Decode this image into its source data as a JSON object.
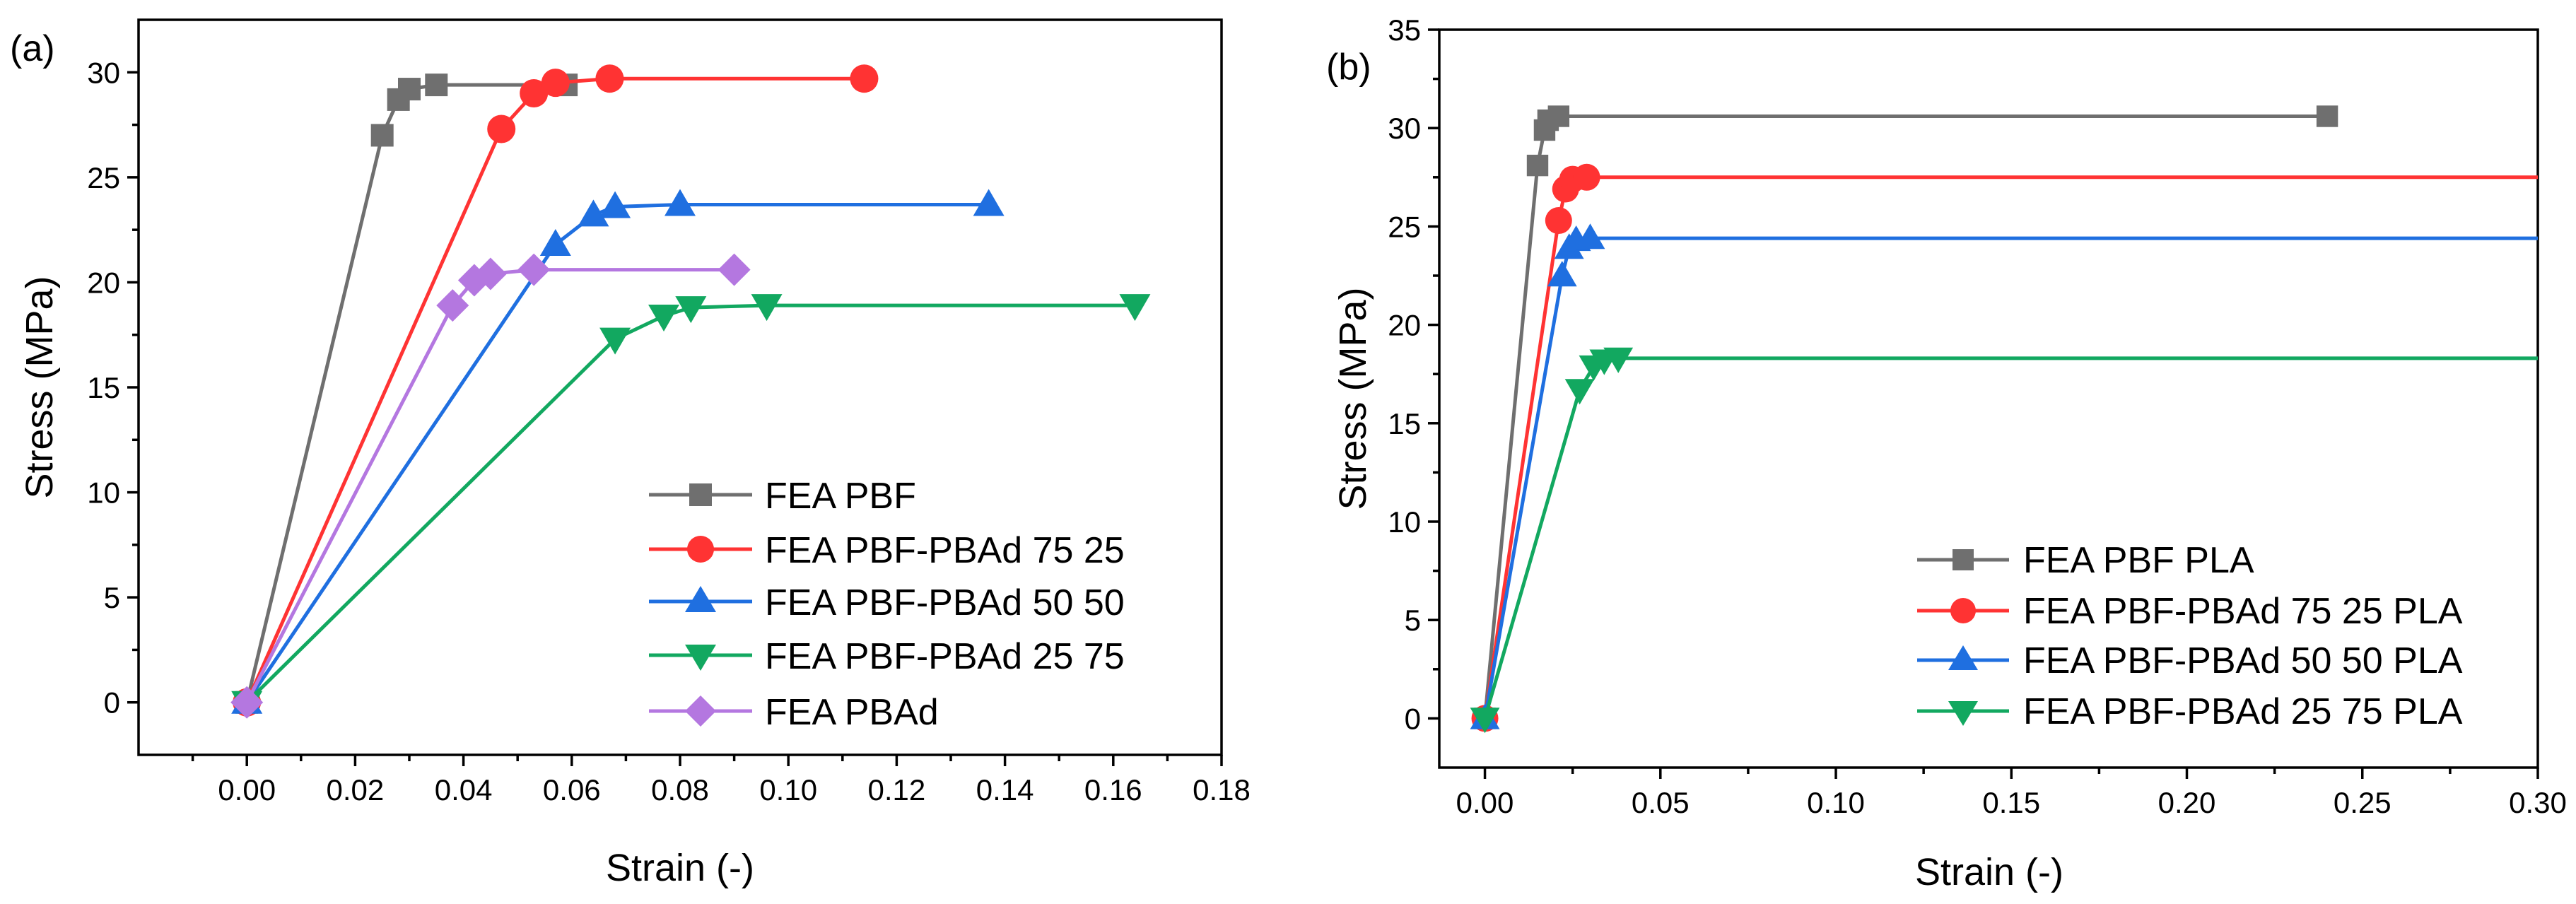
{
  "chart_data": [
    {
      "type": "line",
      "panel_label": "(a)",
      "xlabel": "Strain (-)",
      "ylabel": "Stress (MPa)",
      "xlim": [
        -0.02,
        0.18
      ],
      "ylim": [
        -2.5,
        32.5
      ],
      "xticks": [
        "0.00",
        "0.02",
        "0.04",
        "0.06",
        "0.08",
        "0.10",
        "0.12",
        "0.14",
        "0.16",
        "0.18"
      ],
      "yticks": [
        "0",
        "5",
        "10",
        "15",
        "20",
        "25",
        "30"
      ],
      "legend_position": "bottom-right",
      "series": [
        {
          "name": "FEA PBF",
          "color": "#6f6f6f",
          "marker": "square",
          "x": [
            0,
            0.025,
            0.028,
            0.03,
            0.035,
            0.059
          ],
          "y": [
            0,
            27.0,
            28.7,
            29.2,
            29.4,
            29.4
          ],
          "markers_x": [
            0,
            0.025,
            0.028,
            0.03,
            0.035,
            0.059
          ],
          "markers_y": [
            0,
            27.0,
            28.7,
            29.2,
            29.4,
            29.4
          ]
        },
        {
          "name": "FEA PBF-PBAd 75 25",
          "color": "#ff3333",
          "marker": "circle",
          "x": [
            0,
            0.047,
            0.053,
            0.057,
            0.067,
            0.114
          ],
          "y": [
            0,
            27.3,
            29.0,
            29.5,
            29.7,
            29.7
          ],
          "markers_x": [
            0,
            0.047,
            0.053,
            0.057,
            0.067,
            0.114
          ],
          "markers_y": [
            0,
            27.3,
            29.0,
            29.5,
            29.7,
            29.7
          ]
        },
        {
          "name": "FEA PBF-PBAd 50 50",
          "color": "#1f6fe0",
          "marker": "triangle-up",
          "x": [
            0,
            0.057,
            0.064,
            0.068,
            0.08,
            0.137
          ],
          "y": [
            0,
            21.8,
            23.2,
            23.6,
            23.7,
            23.7
          ],
          "markers_x": [
            0,
            0.057,
            0.064,
            0.068,
            0.08,
            0.137
          ],
          "markers_y": [
            0,
            21.8,
            23.2,
            23.6,
            23.7,
            23.7
          ]
        },
        {
          "name": "FEA PBF-PBAd 25 75",
          "color": "#12a860",
          "marker": "triangle-down",
          "x": [
            0,
            0.068,
            0.077,
            0.082,
            0.096,
            0.164
          ],
          "y": [
            0,
            17.3,
            18.4,
            18.8,
            18.9,
            18.9
          ],
          "markers_x": [
            0,
            0.068,
            0.077,
            0.082,
            0.096,
            0.164
          ],
          "markers_y": [
            0,
            17.3,
            18.4,
            18.8,
            18.9,
            18.9
          ]
        },
        {
          "name": "FEA PBAd",
          "color": "#b477e0",
          "marker": "diamond",
          "x": [
            0,
            0.038,
            0.042,
            0.045,
            0.053,
            0.09
          ],
          "y": [
            0,
            18.9,
            20.1,
            20.4,
            20.6,
            20.6
          ],
          "markers_x": [
            0,
            0.038,
            0.042,
            0.045,
            0.053,
            0.09
          ],
          "markers_y": [
            0,
            18.9,
            20.1,
            20.4,
            20.6,
            20.6
          ]
        }
      ]
    },
    {
      "type": "line",
      "panel_label": "(b)",
      "xlabel": "Strain (-)",
      "ylabel": "Stress (MPa)",
      "xlim": [
        -0.013,
        0.3
      ],
      "ylim": [
        -2.5,
        35
      ],
      "xticks": [
        "0.00",
        "0.05",
        "0.10",
        "0.15",
        "0.20",
        "0.25",
        "0.30"
      ],
      "yticks": [
        "0",
        "5",
        "10",
        "15",
        "20",
        "25",
        "30",
        "35"
      ],
      "legend_position": "bottom-right",
      "series": [
        {
          "name": "FEA PBF PLA",
          "color": "#6f6f6f",
          "marker": "square",
          "x": [
            0,
            0.015,
            0.017,
            0.018,
            0.021,
            0.24
          ],
          "y": [
            0,
            28.1,
            29.9,
            30.4,
            30.6,
            30.6
          ],
          "markers_x": [
            0,
            0.015,
            0.017,
            0.018,
            0.021,
            0.24
          ],
          "markers_y": [
            0,
            28.1,
            29.9,
            30.4,
            30.6,
            30.6
          ]
        },
        {
          "name": "FEA PBF-PBAd 75 25 PLA",
          "color": "#ff3333",
          "marker": "circle",
          "x": [
            0,
            0.021,
            0.023,
            0.025,
            0.029,
            0.3
          ],
          "y": [
            0,
            25.3,
            26.9,
            27.4,
            27.5,
            27.5
          ],
          "markers_x": [
            0,
            0.021,
            0.023,
            0.025,
            0.029
          ],
          "markers_y": [
            0,
            25.3,
            26.9,
            27.4,
            27.5
          ]
        },
        {
          "name": "FEA PBF-PBAd 50 50 PLA",
          "color": "#1f6fe0",
          "marker": "triangle-up",
          "x": [
            0,
            0.022,
            0.024,
            0.026,
            0.03,
            0.3
          ],
          "y": [
            0,
            22.5,
            23.9,
            24.3,
            24.4,
            24.4
          ],
          "markers_x": [
            0,
            0.022,
            0.024,
            0.026,
            0.03
          ],
          "markers_y": [
            0,
            22.5,
            23.9,
            24.3,
            24.4
          ]
        },
        {
          "name": "FEA PBF-PBAd 25 75 PLA",
          "color": "#12a860",
          "marker": "triangle-down",
          "x": [
            0,
            0.027,
            0.031,
            0.034,
            0.038,
            0.3
          ],
          "y": [
            0,
            16.7,
            17.9,
            18.2,
            18.3,
            18.3
          ],
          "markers_x": [
            0,
            0.027,
            0.031,
            0.034,
            0.038
          ],
          "markers_y": [
            0,
            16.7,
            17.9,
            18.2,
            18.3
          ]
        }
      ]
    }
  ]
}
